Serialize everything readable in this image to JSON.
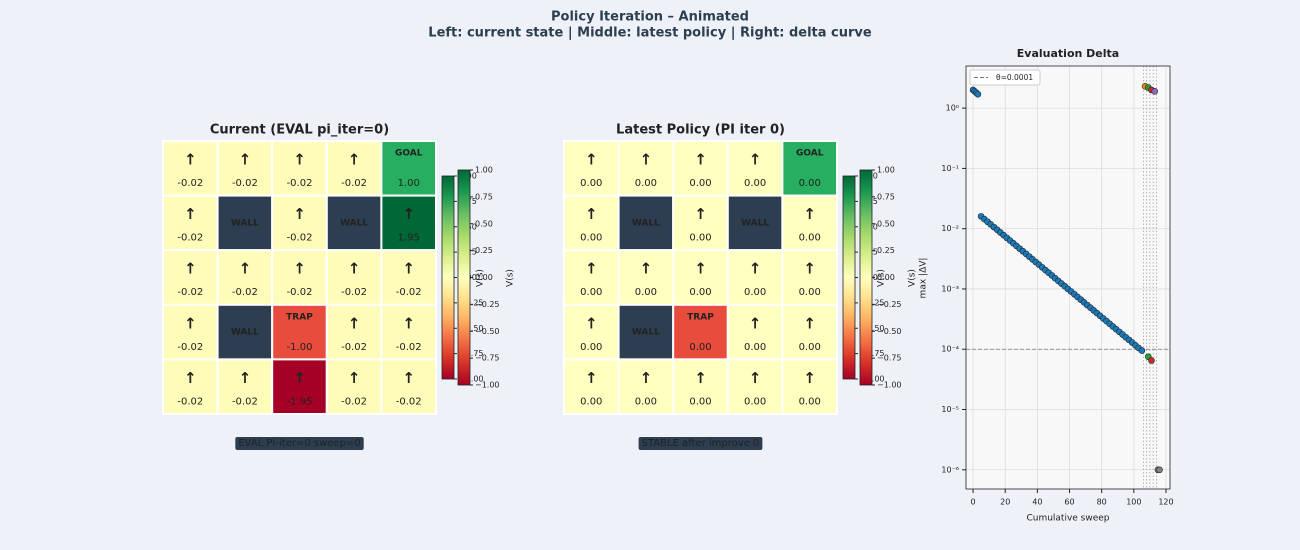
{
  "suptitle": [
    "Policy Iteration  –  Animated",
    "Left: current state  |  Middle: latest policy  |  Right: delta curve"
  ],
  "chart_data": [
    {
      "type": "heatmap",
      "title": "Current  (EVAL  pi_iter=0)",
      "status": "EVAL  PI-iter=0  sweep=0",
      "colorbar": {
        "label": "V(s)",
        "lim": [
          -1,
          1
        ],
        "ticks": [
          {
            "value": -1,
            "label": "−1.00"
          },
          {
            "value": -0.75,
            "label": "−0.75"
          },
          {
            "value": -0.5,
            "label": "−0.50"
          },
          {
            "value": -0.25,
            "label": "−0.25"
          },
          {
            "value": 0,
            "label": "0.00"
          },
          {
            "value": 0.25,
            "label": "0.25"
          },
          {
            "value": 0.5,
            "label": "0.50"
          },
          {
            "value": 0.75,
            "label": "0.75"
          },
          {
            "value": 1,
            "label": "1.00"
          }
        ]
      },
      "cells": [
        [
          {
            "arrow": "↑",
            "value": -0.02
          },
          {
            "arrow": "↑",
            "value": -0.02
          },
          {
            "arrow": "↑",
            "value": -0.02
          },
          {
            "arrow": "↑",
            "value": -0.02
          },
          {
            "label": "GOAL",
            "color": "#27ae60",
            "value": 1,
            "value_label": "1.00"
          }
        ],
        [
          {
            "arrow": "↑",
            "value": -0.02
          },
          {
            "label": "WALL",
            "color": "#2c3e50"
          },
          {
            "arrow": "↑",
            "value": -0.02
          },
          {
            "label": "WALL",
            "color": "#2c3e50"
          },
          {
            "arrow": "↑",
            "value": 1.95
          }
        ],
        [
          {
            "arrow": "↑",
            "value": -0.02
          },
          {
            "arrow": "↑",
            "value": -0.02
          },
          {
            "arrow": "↑",
            "value": -0.02
          },
          {
            "arrow": "↑",
            "value": -0.02
          },
          {
            "arrow": "↑",
            "value": -0.02
          }
        ],
        [
          {
            "arrow": "↑",
            "value": -0.02
          },
          {
            "label": "WALL",
            "color": "#2c3e50"
          },
          {
            "label": "TRAP",
            "color": "#e74c3c",
            "value": -1,
            "value_label": "-1.00"
          },
          {
            "arrow": "↑",
            "value": -0.02
          },
          {
            "arrow": "↑",
            "value": -0.02
          }
        ],
        [
          {
            "arrow": "↑",
            "value": -0.02
          },
          {
            "arrow": "↑",
            "value": -0.02
          },
          {
            "arrow": "↑",
            "value": -1.95
          },
          {
            "arrow": "↑",
            "value": -0.02
          },
          {
            "arrow": "↑",
            "value": -0.02
          }
        ]
      ]
    },
    {
      "type": "heatmap",
      "title": "Latest Policy  (PI iter 0)",
      "status": "STABLE after improve 0",
      "colorbar": {
        "label": "V(s)",
        "lim": [
          -1,
          1
        ],
        "ticks": [
          {
            "value": -1,
            "label": "−1.00"
          },
          {
            "value": -0.75,
            "label": "−0.75"
          },
          {
            "value": -0.5,
            "label": "−0.50"
          },
          {
            "value": -0.25,
            "label": "−0.25"
          },
          {
            "value": 0,
            "label": "0.00"
          },
          {
            "value": 0.25,
            "label": "0.25"
          },
          {
            "value": 0.5,
            "label": "0.50"
          },
          {
            "value": 0.75,
            "label": "0.75"
          },
          {
            "value": 1,
            "label": "1.00"
          }
        ]
      },
      "cells": [
        [
          {
            "arrow": "↑",
            "value": 0,
            "value_label": "0.00"
          },
          {
            "arrow": "↑",
            "value": 0,
            "value_label": "0.00"
          },
          {
            "arrow": "↑",
            "value": 0,
            "value_label": "0.00"
          },
          {
            "arrow": "↑",
            "value": 0,
            "value_label": "0.00"
          },
          {
            "label": "GOAL",
            "color": "#27ae60",
            "value": 0,
            "value_label": "0.00"
          }
        ],
        [
          {
            "arrow": "↑",
            "value": 0,
            "value_label": "0.00"
          },
          {
            "label": "WALL",
            "color": "#2c3e50"
          },
          {
            "arrow": "↑",
            "value": 0,
            "value_label": "0.00"
          },
          {
            "label": "WALL",
            "color": "#2c3e50"
          },
          {
            "arrow": "↑",
            "value": 0,
            "value_label": "0.00"
          }
        ],
        [
          {
            "arrow": "↑",
            "value": 0,
            "value_label": "0.00"
          },
          {
            "arrow": "↑",
            "value": 0,
            "value_label": "0.00"
          },
          {
            "arrow": "↑",
            "value": 0,
            "value_label": "0.00"
          },
          {
            "arrow": "↑",
            "value": 0,
            "value_label": "0.00"
          },
          {
            "arrow": "↑",
            "value": 0,
            "value_label": "0.00"
          }
        ],
        [
          {
            "arrow": "↑",
            "value": 0,
            "value_label": "0.00"
          },
          {
            "label": "WALL",
            "color": "#2c3e50"
          },
          {
            "label": "TRAP",
            "color": "#e74c3c",
            "value": 0,
            "value_label": "0.00"
          },
          {
            "arrow": "↑",
            "value": 0,
            "value_label": "0.00"
          },
          {
            "arrow": "↑",
            "value": 0,
            "value_label": "0.00"
          }
        ],
        [
          {
            "arrow": "↑",
            "value": 0,
            "value_label": "0.00"
          },
          {
            "arrow": "↑",
            "value": 0,
            "value_label": "0.00"
          },
          {
            "arrow": "↑",
            "value": 0,
            "value_label": "0.00"
          },
          {
            "arrow": "↑",
            "value": 0,
            "value_label": "0.00"
          },
          {
            "arrow": "↑",
            "value": 0,
            "value_label": "0.00"
          }
        ]
      ]
    },
    {
      "type": "scatter",
      "title": "Evaluation Delta",
      "x_label": "Cumulative sweep",
      "y_label": "max |ΔV|",
      "log_y": true,
      "grid": true,
      "xlim": [
        -4.4,
        122.5
      ],
      "xticks": [
        0,
        20,
        40,
        60,
        80,
        100,
        120
      ],
      "ylim": [
        4.8e-07,
        5.0
      ],
      "yticks": [
        {
          "value": 1e-06,
          "label": "10⁻⁶"
        },
        {
          "value": 1e-05,
          "label": "10⁻⁵"
        },
        {
          "value": 0.0001,
          "label": "10⁻⁴"
        },
        {
          "value": 0.001,
          "label": "10⁻³"
        },
        {
          "value": 0.01,
          "label": "10⁻²"
        },
        {
          "value": 0.1,
          "label": "10⁻¹"
        },
        {
          "value": 1,
          "label": "10⁰"
        }
      ],
      "threshold": {
        "value": 0.0001,
        "label": "θ=0.0001"
      },
      "vlines": [
        106,
        108,
        110,
        112,
        114
      ],
      "legend": "upper left",
      "series": [
        {
          "color": "#1f77b4",
          "x": [
            0,
            1,
            2,
            3,
            5,
            7,
            9,
            11,
            13,
            15,
            17,
            19,
            21,
            23,
            25,
            27,
            29,
            31,
            33,
            35,
            37,
            39,
            41,
            43,
            45,
            47,
            49,
            51,
            53,
            55,
            57,
            59,
            61,
            63,
            65,
            67,
            69,
            71,
            73,
            75,
            77,
            79,
            81,
            83,
            85,
            87,
            89,
            91,
            93,
            95,
            97,
            99,
            101,
            103,
            105
          ],
          "values": [
            2.0,
            1.9,
            1.8,
            1.7,
            0.016,
            0.01444,
            0.01303,
            0.01176,
            0.01061,
            0.00958,
            0.00865,
            0.0078,
            0.00704,
            0.00636,
            0.00574,
            0.00518,
            0.00467,
            0.00422,
            0.00381,
            0.00344,
            0.0031,
            0.0028,
            0.00253,
            0.00228,
            0.00206,
            0.00186,
            0.00168,
            0.00151,
            0.00136,
            0.00123,
            0.00111,
            0.001,
            0.000905,
            0.000817,
            0.000737,
            0.000665,
            0.0006,
            0.000542,
            0.000489,
            0.000441,
            0.000398,
            0.000359,
            0.000324,
            0.000293,
            0.000264,
            0.000238,
            0.000215,
            0.000194,
            0.000175,
            0.000158,
            0.000143,
            0.000129,
            0.000116,
            0.000105,
            9.5e-05
          ]
        },
        {
          "color": "#ff7f0e",
          "x": [
            107
          ],
          "values": [
            2.3
          ]
        },
        {
          "color": "#2ca02c",
          "x": [
            109,
            109
          ],
          "values": [
            2.2,
            7.5e-05
          ]
        },
        {
          "color": "#d62728",
          "x": [
            111,
            111
          ],
          "values": [
            2.0,
            6.5e-05
          ]
        },
        {
          "color": "#9467bd",
          "x": [
            113
          ],
          "values": [
            1.9
          ]
        },
        {
          "color": "#7f7f7f",
          "x": [
            115,
            116
          ],
          "values": [
            1e-06,
            1e-06
          ]
        }
      ]
    }
  ]
}
